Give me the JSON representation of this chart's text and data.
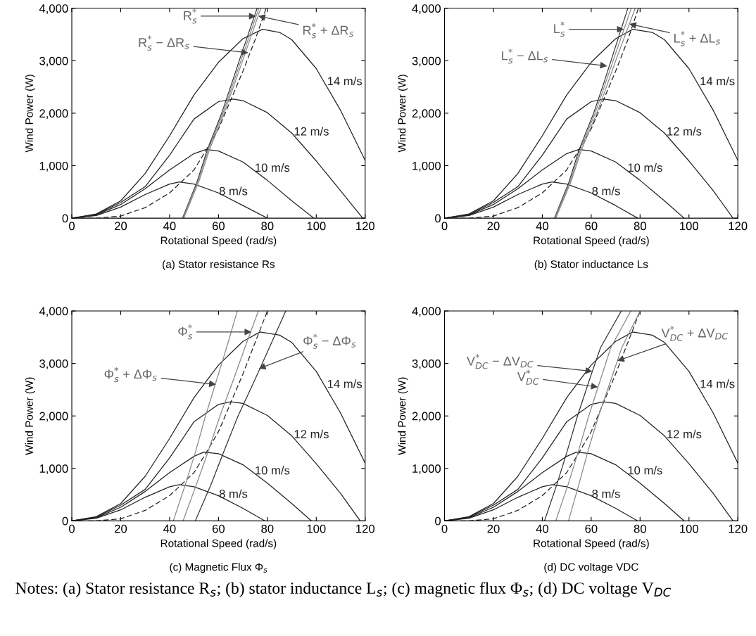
{
  "chart_data": [
    {
      "type": "line",
      "subtitle": "(a) Stator resistance Rs",
      "xlabel": "Rotational Speed (rad/s)",
      "ylabel": "Wind Power (W)",
      "xlim": [
        0,
        120
      ],
      "ylim": [
        0,
        4000
      ],
      "xticks": [
        0,
        20,
        40,
        60,
        80,
        100,
        120
      ],
      "yticks": [
        0,
        {
          "value": 1000,
          "label": "1,000"
        },
        {
          "value": 2000,
          "label": "2,000"
        },
        {
          "value": 3000,
          "label": "3,000"
        },
        {
          "value": 4000,
          "label": "4,000"
        }
      ],
      "grid": false,
      "legend": false,
      "marker": "none",
      "series": [
        {
          "name": "8 m/s",
          "color": "#222222",
          "x": [
            0,
            10,
            20,
            30,
            40,
            44,
            50,
            60,
            70,
            80
          ],
          "values": [
            0,
            50,
            210,
            450,
            650,
            690,
            650,
            480,
            240,
            0
          ]
        },
        {
          "name": "10 m/s",
          "color": "#222222",
          "x": [
            0,
            10,
            20,
            30,
            40,
            50,
            55,
            60,
            70,
            80,
            90,
            99
          ],
          "values": [
            0,
            60,
            260,
            560,
            920,
            1230,
            1310,
            1280,
            1070,
            720,
            330,
            0
          ]
        },
        {
          "name": "12 m/s",
          "color": "#222222",
          "x": [
            0,
            10,
            20,
            30,
            40,
            50,
            60,
            66,
            70,
            80,
            90,
            100,
            110,
            119
          ],
          "values": [
            0,
            70,
            300,
            600,
            1200,
            1890,
            2220,
            2270,
            2240,
            2010,
            1620,
            1090,
            520,
            0
          ]
        },
        {
          "name": "14 m/s",
          "color": "#222222",
          "x": [
            0,
            10,
            20,
            30,
            40,
            50,
            60,
            70,
            78,
            85,
            90,
            100,
            110,
            120
          ],
          "values": [
            0,
            80,
            330,
            850,
            1570,
            2350,
            2970,
            3420,
            3600,
            3540,
            3400,
            2850,
            2050,
            1100
          ]
        },
        {
          "color": "#222222",
          "line_style": "dashed",
          "x": [
            0,
            10,
            20,
            30,
            40,
            50,
            55,
            60,
            65,
            70,
            75,
            79.5
          ],
          "values": [
            0,
            0,
            40,
            200,
            480,
            920,
            1300,
            1700,
            2250,
            2800,
            3400,
            4000
          ]
        },
        {
          "color": "#333333",
          "x": [
            45.3,
            51.3,
            55.4,
            61.3,
            65.3,
            69.2,
            75.8
          ],
          "values": [
            0,
            700,
            1300,
            2000,
            2550,
            3100,
            4000
          ]
        },
        {
          "color": "#888888",
          "x": [
            45.5,
            51.6,
            55.8,
            61.8,
            65.9,
            69.9,
            76.5
          ],
          "values": [
            0,
            700,
            1300,
            2000,
            2550,
            3100,
            4000
          ]
        },
        {
          "color": "#888888",
          "x": [
            45.8,
            52.0,
            56.3,
            62.3,
            66.5,
            70.6,
            77.3
          ],
          "values": [
            0,
            700,
            1300,
            2000,
            2550,
            3100,
            4000
          ]
        }
      ],
      "annotations": [
        {
          "text": "R$^{*}$$_{s}$",
          "x": 75.3,
          "y": 3850
        },
        {
          "text": "R$^{*}$$_{s}$ + ΔR$_{s}$",
          "x": 76.3,
          "y": 3850
        },
        {
          "text": "R$^{*}$$_{s}$ − ΔR$_{s}$",
          "x": 72.2,
          "y": 3150
        }
      ]
    },
    {
      "type": "line",
      "subtitle": "(b) Stator inductance Ls",
      "xlabel": "Rotational Speed (rad/s)",
      "ylabel": "Wind Power (W)",
      "xlim": [
        0,
        120
      ],
      "ylim": [
        0,
        4000
      ],
      "xticks": [
        0,
        20,
        40,
        60,
        80,
        100,
        120
      ],
      "yticks": [
        0,
        {
          "value": 1000,
          "label": "1,000"
        },
        {
          "value": 2000,
          "label": "2,000"
        },
        {
          "value": 3000,
          "label": "3,000"
        },
        {
          "value": 4000,
          "label": "4,000"
        }
      ],
      "grid": false,
      "legend": false,
      "marker": "none",
      "series": [
        {
          "name": "8 m/s",
          "color": "#222222",
          "x": [
            0,
            10,
            20,
            30,
            40,
            44,
            50,
            60,
            70,
            79
          ],
          "values": [
            0,
            50,
            210,
            450,
            650,
            690,
            650,
            480,
            240,
            0
          ]
        },
        {
          "name": "10 m/s",
          "color": "#222222",
          "x": [
            0,
            10,
            20,
            30,
            40,
            50,
            55,
            60,
            70,
            80,
            90,
            98
          ],
          "values": [
            0,
            60,
            260,
            560,
            920,
            1230,
            1310,
            1280,
            1070,
            720,
            330,
            0
          ]
        },
        {
          "name": "12 m/s",
          "color": "#222222",
          "x": [
            0,
            10,
            20,
            30,
            40,
            50,
            60,
            65,
            70,
            80,
            90,
            100,
            110,
            118
          ],
          "values": [
            0,
            70,
            300,
            600,
            1200,
            1890,
            2220,
            2270,
            2240,
            2010,
            1620,
            1090,
            520,
            0
          ]
        },
        {
          "name": "14 m/s",
          "color": "#222222",
          "x": [
            0,
            10,
            20,
            30,
            40,
            50,
            60,
            70,
            77,
            85,
            90,
            100,
            110,
            120
          ],
          "values": [
            0,
            80,
            330,
            850,
            1570,
            2350,
            2970,
            3420,
            3600,
            3540,
            3400,
            2850,
            2050,
            1100
          ]
        },
        {
          "color": "#222222",
          "line_style": "dashed",
          "x": [
            0,
            10,
            20,
            30,
            40,
            50,
            55,
            60,
            65,
            70,
            75,
            79.3
          ],
          "values": [
            0,
            0,
            40,
            200,
            480,
            920,
            1300,
            1700,
            2250,
            2800,
            3400,
            4000
          ]
        },
        {
          "color": "#333333",
          "x": [
            45.0,
            51.0,
            55.0,
            61.0,
            65.0,
            68.8,
            75.0
          ],
          "values": [
            0,
            700,
            1300,
            2000,
            2550,
            3100,
            4000
          ]
        },
        {
          "color": "#888888",
          "x": [
            45.2,
            51.4,
            55.5,
            61.6,
            65.7,
            69.7,
            76.4
          ],
          "values": [
            0,
            700,
            1300,
            2000,
            2550,
            3100,
            4000
          ]
        },
        {
          "color": "#888888",
          "x": [
            45.5,
            51.8,
            56.0,
            62.3,
            66.6,
            70.8,
            78.0
          ],
          "values": [
            0,
            700,
            1300,
            2000,
            2550,
            3100,
            4000
          ]
        }
      ],
      "annotations": [
        {
          "text": "L$^{*}$$_{s}$",
          "x": 73.4,
          "y": 3600
        },
        {
          "text": "L$^{*}$$_{s}$ + ΔL$_{s}$",
          "x": 75.6,
          "y": 3700
        },
        {
          "text": "L$^{*}$$_{s}$ − ΔL$_{s}$",
          "x": 66.5,
          "y": 2900
        }
      ]
    },
    {
      "type": "line",
      "subtitle": "(c) Magnetic Flux Φ$_{s}$",
      "xlabel": "Rotational Speed (rad/s)",
      "ylabel": "Wind Power (W)",
      "xlim": [
        0,
        120
      ],
      "ylim": [
        0,
        4000
      ],
      "xticks": [
        0,
        20,
        40,
        60,
        80,
        100,
        120
      ],
      "yticks": [
        0,
        {
          "value": 1000,
          "label": "1,000"
        },
        {
          "value": 2000,
          "label": "2,000"
        },
        {
          "value": 3000,
          "label": "3,000"
        },
        {
          "value": 4000,
          "label": "4,000"
        }
      ],
      "grid": false,
      "legend": false,
      "marker": "none",
      "series": [
        {
          "name": "8 m/s",
          "color": "#222222",
          "x": [
            0,
            10,
            20,
            30,
            40,
            44,
            50,
            60,
            70,
            79
          ],
          "values": [
            0,
            50,
            210,
            450,
            650,
            690,
            650,
            480,
            240,
            0
          ]
        },
        {
          "name": "10 m/s",
          "color": "#222222",
          "x": [
            0,
            10,
            20,
            30,
            40,
            50,
            54,
            60,
            70,
            80,
            90,
            98
          ],
          "values": [
            0,
            60,
            260,
            560,
            920,
            1230,
            1310,
            1280,
            1070,
            720,
            330,
            0
          ]
        },
        {
          "name": "12 m/s",
          "color": "#222222",
          "x": [
            0,
            10,
            20,
            30,
            40,
            50,
            60,
            65,
            70,
            80,
            90,
            100,
            110,
            118
          ],
          "values": [
            0,
            70,
            300,
            600,
            1200,
            1890,
            2220,
            2270,
            2240,
            2010,
            1620,
            1090,
            520,
            0
          ]
        },
        {
          "name": "14 m/s",
          "color": "#222222",
          "x": [
            0,
            10,
            20,
            30,
            40,
            50,
            60,
            70,
            77,
            85,
            90,
            100,
            110,
            120
          ],
          "values": [
            0,
            80,
            330,
            850,
            1570,
            2350,
            2970,
            3420,
            3600,
            3540,
            3400,
            2850,
            2050,
            1100
          ]
        },
        {
          "color": "#222222",
          "line_style": "dashed",
          "x": [
            0,
            10,
            20,
            30,
            40,
            50,
            55,
            60,
            65,
            70,
            75,
            80
          ],
          "values": [
            0,
            0,
            40,
            200,
            480,
            920,
            1300,
            1700,
            2250,
            2800,
            3400,
            4000
          ]
        },
        {
          "color": "#888888",
          "x": [
            41.5,
            46.5,
            50.5,
            54.7,
            59.0,
            63.3,
            67.7
          ],
          "values": [
            0,
            700,
            1300,
            2000,
            2650,
            3300,
            4000
          ]
        },
        {
          "color": "#888888",
          "x": [
            45.5,
            51.0,
            55.6,
            60.6,
            65.8,
            70.8,
            76.3
          ],
          "values": [
            0,
            700,
            1300,
            2000,
            2650,
            3300,
            4000
          ]
        },
        {
          "color": "#333333",
          "x": [
            50.5,
            57.0,
            62.0,
            68.0,
            74.5,
            80.8,
            87.5
          ],
          "values": [
            0,
            700,
            1300,
            2000,
            2650,
            3300,
            4000
          ]
        }
      ],
      "annotations": [
        {
          "text": "Φ$^{*}$$_{s}$ + ΔΦ$_{s}$",
          "x": 59.0,
          "y": 2600
        },
        {
          "text": "Φ$^{*}$$_{s}$",
          "x": 73.5,
          "y": 3600
        },
        {
          "text": "Φ$^{*}$$_{s}$ − ΔΦ$_{s}$",
          "x": 76.5,
          "y": 2900
        }
      ]
    },
    {
      "type": "line",
      "subtitle": "(d) DC voltage VDC",
      "xlabel": "Rotational Speed (rad/s)",
      "ylabel": "Wind Power (W)",
      "xlim": [
        0,
        120
      ],
      "ylim": [
        0,
        4000
      ],
      "xticks": [
        0,
        20,
        40,
        60,
        80,
        100,
        120
      ],
      "yticks": [
        0,
        {
          "value": 1000,
          "label": "1,000"
        },
        {
          "value": 2000,
          "label": "2,000"
        },
        {
          "value": 3000,
          "label": "3,000"
        },
        {
          "value": 4000,
          "label": "4,000"
        }
      ],
      "grid": false,
      "legend": false,
      "marker": "none",
      "series": [
        {
          "name": "8 m/s",
          "color": "#222222",
          "x": [
            0,
            10,
            20,
            30,
            40,
            44,
            50,
            60,
            70,
            79
          ],
          "values": [
            0,
            50,
            210,
            450,
            650,
            690,
            650,
            480,
            240,
            0
          ]
        },
        {
          "name": "10 m/s",
          "color": "#222222",
          "x": [
            0,
            10,
            20,
            30,
            40,
            50,
            54,
            60,
            70,
            80,
            90,
            98
          ],
          "values": [
            0,
            60,
            260,
            560,
            920,
            1230,
            1310,
            1280,
            1070,
            720,
            330,
            0
          ]
        },
        {
          "name": "12 m/s",
          "color": "#222222",
          "x": [
            0,
            10,
            20,
            30,
            40,
            50,
            60,
            65,
            70,
            80,
            90,
            100,
            110,
            118
          ],
          "values": [
            0,
            70,
            300,
            600,
            1200,
            1890,
            2220,
            2270,
            2240,
            2010,
            1620,
            1090,
            520,
            0
          ]
        },
        {
          "name": "14 m/s",
          "color": "#222222",
          "x": [
            0,
            10,
            20,
            30,
            40,
            50,
            60,
            70,
            77,
            85,
            90,
            100,
            110,
            120
          ],
          "values": [
            0,
            80,
            330,
            850,
            1570,
            2350,
            2970,
            3420,
            3600,
            3540,
            3400,
            2850,
            2050,
            1100
          ]
        },
        {
          "color": "#222222",
          "line_style": "dashed",
          "x": [
            0,
            10,
            20,
            30,
            40,
            50,
            55,
            60,
            65,
            70,
            75,
            80
          ],
          "values": [
            0,
            0,
            40,
            200,
            480,
            920,
            1300,
            1700,
            2250,
            2800,
            3400,
            4000
          ]
        },
        {
          "color": "#333333",
          "x": [
            40.9,
            46.0,
            50.0,
            54.4,
            59.0,
            63.8,
            72.3
          ],
          "values": [
            0,
            700,
            1300,
            2000,
            2650,
            3300,
            4000
          ]
        },
        {
          "color": "#888888",
          "x": [
            45.5,
            50.6,
            54.6,
            59.0,
            63.5,
            68.0,
            76.2
          ],
          "values": [
            0,
            700,
            1300,
            2000,
            2650,
            3300,
            4000
          ]
        },
        {
          "color": "#888888",
          "x": [
            50.7,
            55.0,
            58.5,
            63.0,
            67.8,
            72.5,
            80.0
          ],
          "values": [
            0,
            700,
            1300,
            2000,
            2650,
            3300,
            4000
          ]
        }
      ],
      "annotations": [
        {
          "text": "V$^{*}$$_{DC}$ − ΔV$_{DC}$",
          "x": 60.5,
          "y": 2850
        },
        {
          "text": "V$^{*}$$_{DC}$",
          "x": 62.8,
          "y": 2550
        },
        {
          "text": "V$^{*}$$_{DC}$ + ΔV$_{DC}$",
          "x": 70.7,
          "y": 3050
        },
        "Notes: (a) Stator resistance R$_{s}$; (b) stator inductance L$_{s}$; (c) magnetic flux Φ$_{s}$; (d) DC voltage V$_{DC}$"
      ]
    }
  ]
}
